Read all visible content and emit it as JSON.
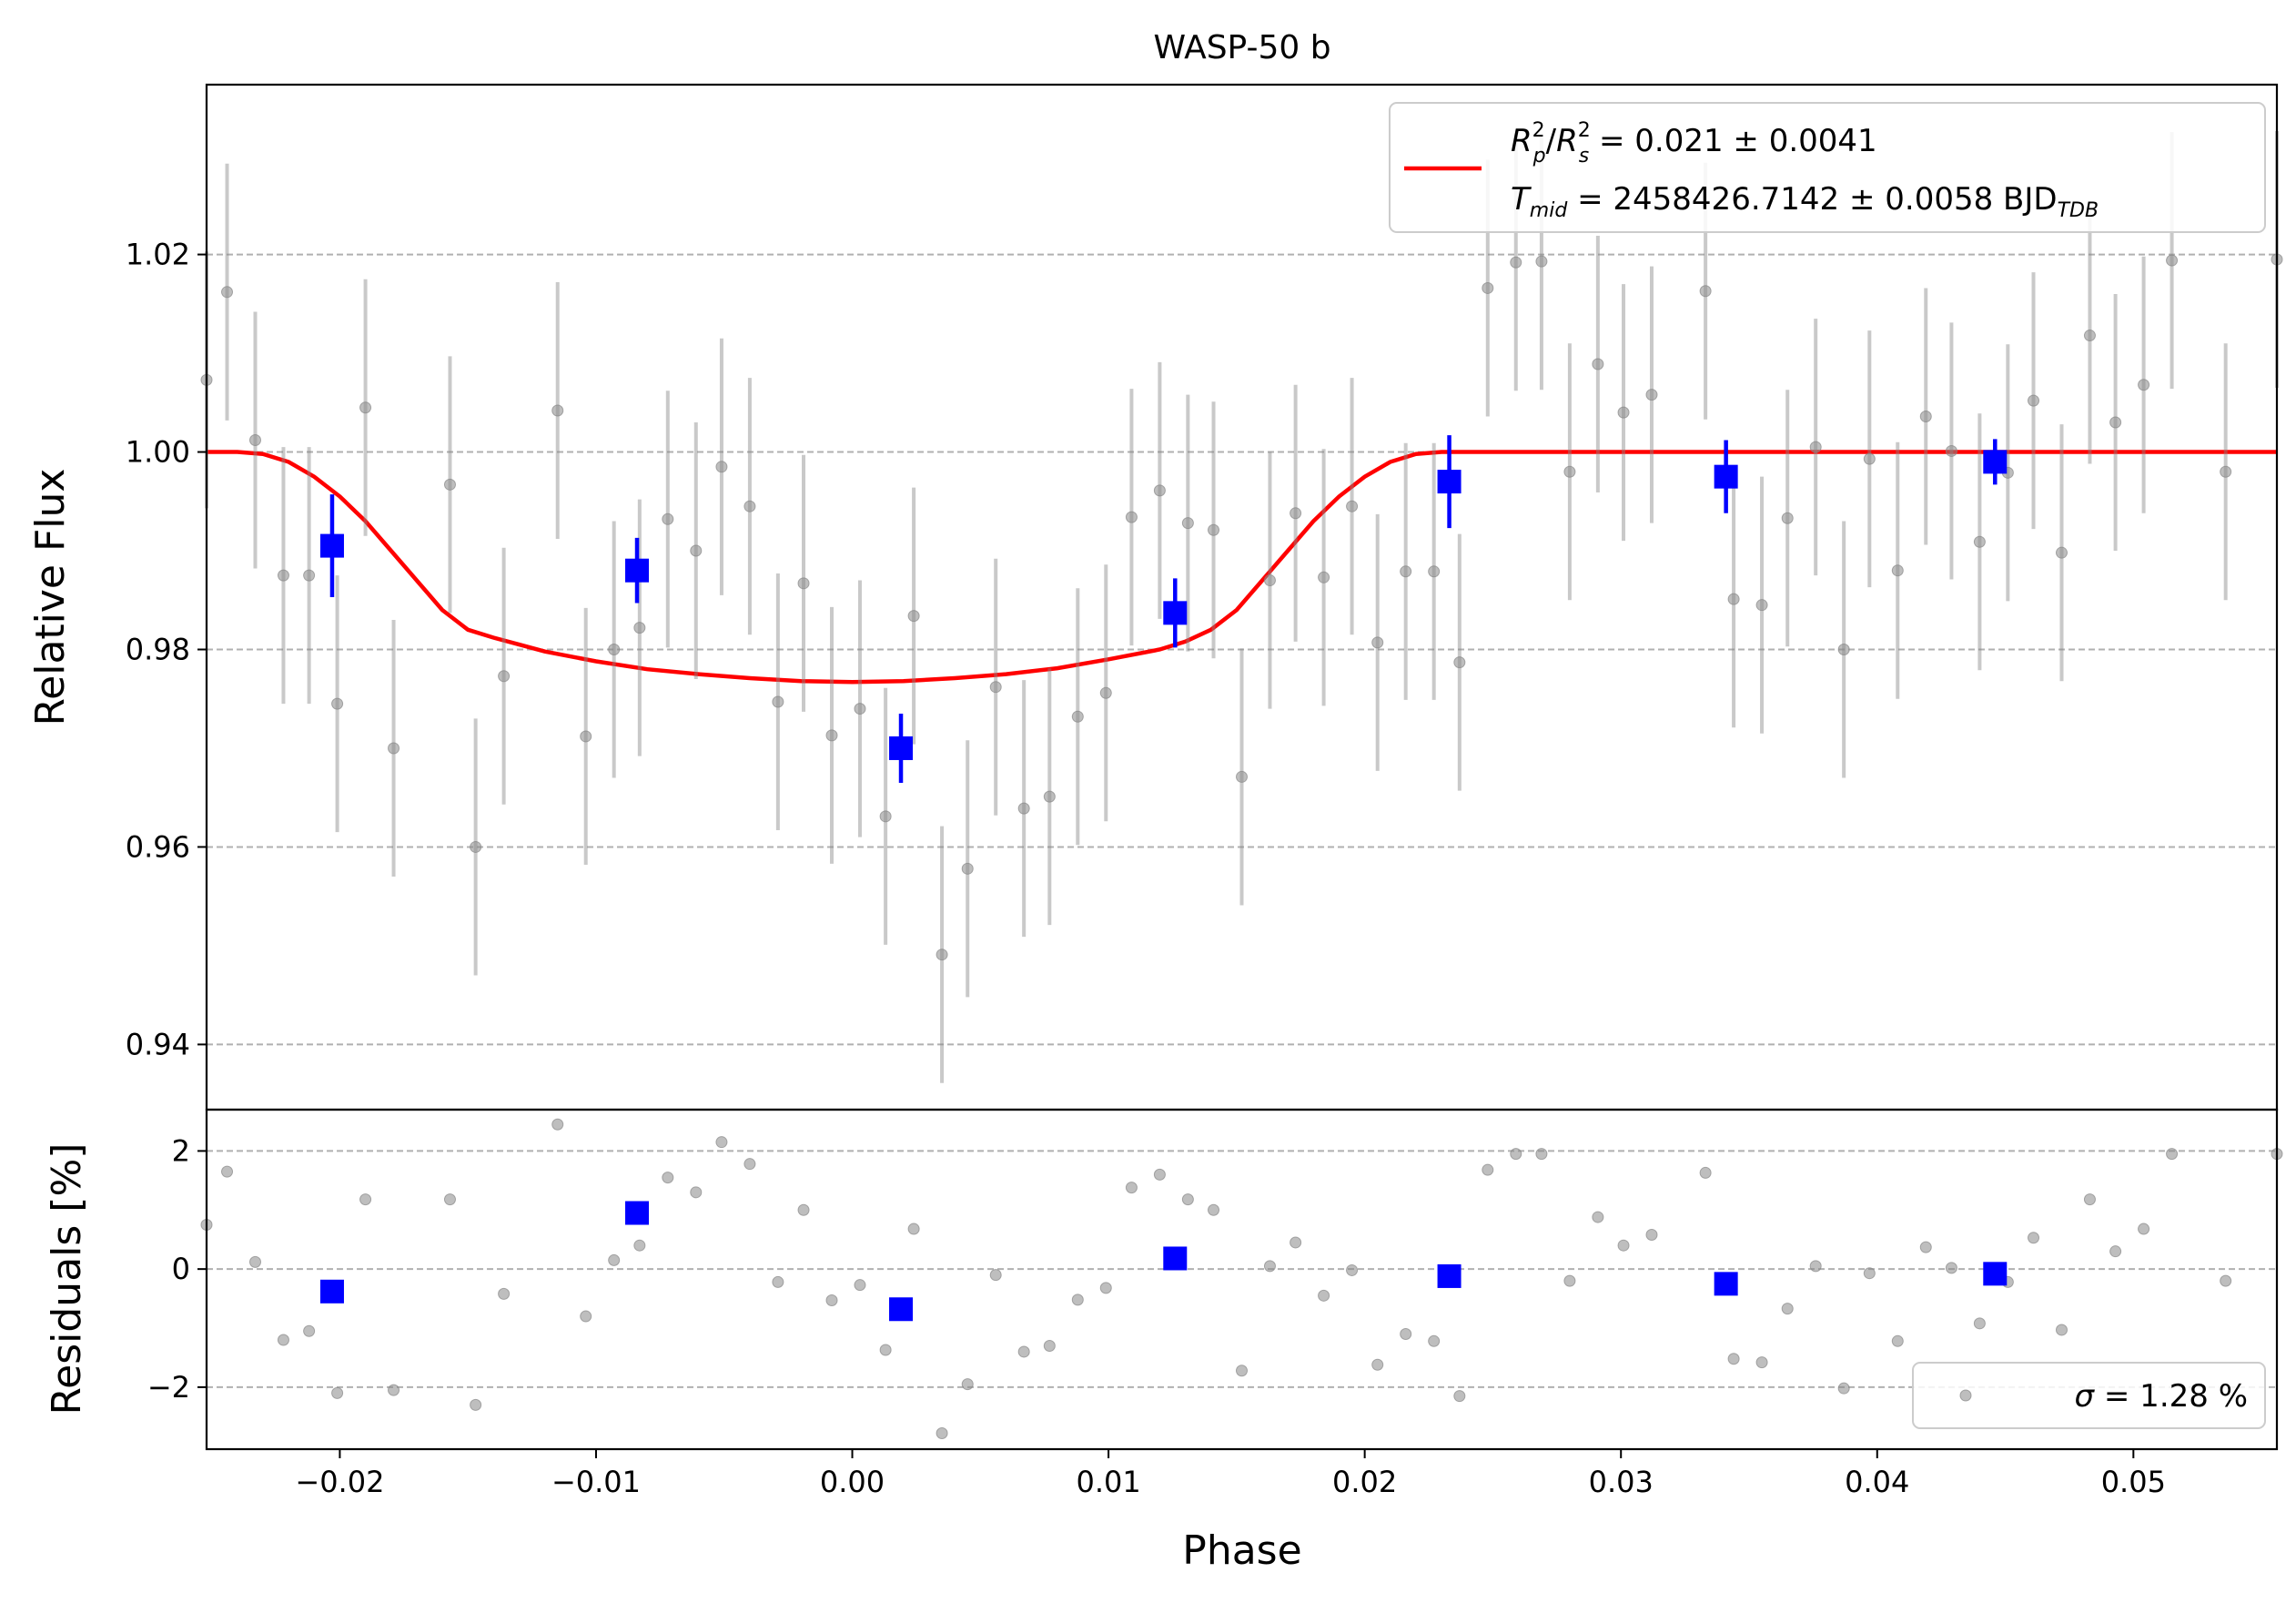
{
  "chart_data": [
    {
      "type": "scatter",
      "title": "WASP-50 b",
      "ylabel": "Relative Flux",
      "xlim": [
        -0.0252,
        0.0556
      ],
      "ylim": [
        0.9334,
        1.0372
      ],
      "xticks": [
        "−0.02",
        "−0.01",
        "0.00",
        "0.01",
        "0.02",
        "0.03",
        "0.04",
        "0.05"
      ],
      "yticks": [
        "0.94",
        "0.96",
        "0.98",
        "1.00",
        "1.02"
      ],
      "grid": "y-dashed",
      "legend": {
        "placement": "top-right",
        "line1": {
          "a": "R",
          "a_sub": "p",
          "a_sup": "2",
          "b": "R",
          "b_sub": "s",
          "b_sup": "2",
          "value": " = 0.021 ± 0.0041"
        },
        "line2": {
          "sym": "T",
          "sym_sub": "mid",
          "value": " = 2458426.7142 ± 0.0058 BJD",
          "unit_sub": "TDB"
        }
      },
      "series": [
        {
          "kind": "raw",
          "color": "#888888",
          "x": [
            -0.0254,
            -0.0244,
            -0.0233,
            -0.0222,
            -0.0212,
            -0.0201,
            -0.019,
            -0.0179,
            -0.0157,
            -0.0147,
            -0.0136,
            -0.0115,
            -0.0104,
            -0.0093,
            -0.0083,
            -0.0072,
            -0.0061,
            -0.0051,
            -0.004,
            -0.0029,
            -0.0019,
            -0.0008,
            0.0003,
            0.0013,
            0.0024,
            0.0035,
            0.0045,
            0.0056,
            0.0067,
            0.0077,
            0.0088,
            0.0099,
            0.0109,
            0.012,
            0.0131,
            0.0141,
            0.0152,
            0.0163,
            0.0173,
            0.0184,
            0.0195,
            0.0205,
            0.0216,
            0.0227,
            0.0237,
            0.0248,
            0.0259,
            0.0269,
            0.028,
            0.0291,
            0.0301,
            0.0312,
            0.0333,
            0.0344,
            0.0355,
            0.0365,
            0.0376,
            0.0387,
            0.0397,
            0.0408,
            0.0419,
            0.0429,
            0.044,
            0.0451,
            0.0461,
            0.0472,
            0.0483,
            0.0493,
            0.0504,
            0.0515,
            0.0536,
            0.0557
          ],
          "y": [
            1.0073,
            1.0162,
            1.0012,
            0.9875,
            0.9875,
            0.9745,
            1.0045,
            0.97,
            0.9967,
            0.96,
            0.9773,
            1.0042,
            0.9712,
            0.98,
            0.9822,
            0.9932,
            0.99,
            0.9985,
            0.9945,
            0.9747,
            0.9867,
            0.9713,
            0.974,
            0.9631,
            0.9834,
            0.9491,
            0.9578,
            0.9762,
            0.9639,
            0.9651,
            0.9732,
            0.9756,
            0.9934,
            0.9961,
            0.9928,
            0.9921,
            0.9671,
            0.987,
            0.9938,
            0.9873,
            0.9945,
            0.9807,
            0.9879,
            0.9879,
            0.9787,
            1.0166,
            1.0192,
            1.0193,
            0.998,
            1.0089,
            1.004,
            1.0058,
            1.0163,
            0.9851,
            0.9845,
            0.9933,
            1.0005,
            0.98,
            0.9993,
            0.988,
            1.0036,
            1.0001,
            0.9909,
            0.9979,
            1.0052,
            0.9898,
            1.0118,
            1.003,
            1.0068,
            1.0194,
            0.998,
            1.0195
          ],
          "err": [
            0.013,
            0.013,
            0.013,
            0.013,
            0.013,
            0.013,
            0.013,
            0.013,
            0.013,
            0.013,
            0.013,
            0.013,
            0.013,
            0.013,
            0.013,
            0.013,
            0.013,
            0.013,
            0.013,
            0.013,
            0.013,
            0.013,
            0.013,
            0.013,
            0.013,
            0.013,
            0.013,
            0.013,
            0.013,
            0.013,
            0.013,
            0.013,
            0.013,
            0.013,
            0.013,
            0.013,
            0.013,
            0.013,
            0.013,
            0.013,
            0.013,
            0.013,
            0.013,
            0.013,
            0.013,
            0.013,
            0.013,
            0.013,
            0.013,
            0.013,
            0.013,
            0.013,
            0.013,
            0.013,
            0.013,
            0.013,
            0.013,
            0.013,
            0.013,
            0.013,
            0.013,
            0.013,
            0.013,
            0.013,
            0.013,
            0.013,
            0.013,
            0.013,
            0.013,
            0.013,
            0.013,
            0.013
          ]
        },
        {
          "kind": "binned",
          "color": "#0000ff",
          "x": [
            -0.0203,
            -0.0084,
            0.0019,
            0.0126,
            0.0233,
            0.0341,
            0.0446
          ],
          "y": [
            0.9905,
            0.988,
            0.97,
            0.9837,
            0.997,
            0.9975,
            0.999
          ],
          "err": [
            0.0052,
            0.0033,
            0.0035,
            0.0035,
            0.0047,
            0.0037,
            0.0023
          ]
        },
        {
          "kind": "model",
          "color": "#ff0000",
          "x": [
            -0.0252,
            -0.024,
            -0.023,
            -0.022,
            -0.021,
            -0.02,
            -0.019,
            -0.018,
            -0.017,
            -0.016,
            -0.015,
            -0.014,
            -0.013,
            -0.012,
            -0.01,
            -0.008,
            -0.006,
            -0.004,
            -0.002,
            0.0,
            0.002,
            0.004,
            0.006,
            0.008,
            0.01,
            0.012,
            0.013,
            0.014,
            0.015,
            0.016,
            0.017,
            0.018,
            0.019,
            0.02,
            0.021,
            0.022,
            0.023,
            0.024,
            0.0556
          ],
          "y": [
            1.0,
            1.0,
            0.9998,
            0.999,
            0.9975,
            0.9955,
            0.993,
            0.99,
            0.987,
            0.984,
            0.982,
            0.9812,
            0.9805,
            0.9798,
            0.9788,
            0.978,
            0.9775,
            0.9771,
            0.9768,
            0.9767,
            0.9768,
            0.9771,
            0.9775,
            0.9781,
            0.979,
            0.98,
            0.9808,
            0.982,
            0.984,
            0.987,
            0.99,
            0.993,
            0.9955,
            0.9975,
            0.999,
            0.9998,
            1.0,
            1.0,
            1.0
          ]
        }
      ]
    },
    {
      "type": "scatter",
      "ylabel": "Residuals [%]",
      "xlabel": "Phase",
      "xlim": [
        -0.0252,
        0.0556
      ],
      "ylim": [
        -3.05,
        2.7
      ],
      "yticks": [
        "−2",
        "0",
        "2"
      ],
      "grid": "y-dashed",
      "legend": {
        "placement": "bottom-right",
        "sym": "σ",
        "value": " = 1.28 %"
      },
      "series": [
        {
          "kind": "raw",
          "color": "#888888",
          "x": [
            -0.0254,
            -0.0244,
            -0.0233,
            -0.0222,
            -0.0212,
            -0.0201,
            -0.019,
            -0.0179,
            -0.0157,
            -0.0147,
            -0.0136,
            -0.0115,
            -0.0104,
            -0.0093,
            -0.0083,
            -0.0072,
            -0.0061,
            -0.0051,
            -0.004,
            -0.0029,
            -0.0019,
            -0.0008,
            0.0003,
            0.0013,
            0.0024,
            0.0035,
            0.0045,
            0.0056,
            0.0067,
            0.0077,
            0.0088,
            0.0099,
            0.0109,
            0.012,
            0.0131,
            0.0141,
            0.0152,
            0.0163,
            0.0173,
            0.0184,
            0.0195,
            0.0205,
            0.0216,
            0.0227,
            0.0237,
            0.0248,
            0.0259,
            0.0269,
            0.028,
            0.0291,
            0.0301,
            0.0312,
            0.0333,
            0.0344,
            0.0355,
            0.0365,
            0.0376,
            0.0387,
            0.0397,
            0.0408,
            0.0419,
            0.0429,
            0.044,
            0.0451,
            0.0461,
            0.0472,
            0.0483,
            0.0493,
            0.0504,
            0.0515,
            0.0536,
            0.0557
          ],
          "y": [
            0.75,
            1.65,
            0.12,
            -1.2,
            -1.05,
            -2.1,
            1.18,
            -2.05,
            1.18,
            -2.3,
            -0.42,
            2.45,
            -0.8,
            0.15,
            0.4,
            1.55,
            1.3,
            2.15,
            1.78,
            -0.22,
            1.0,
            -0.53,
            -0.27,
            -1.37,
            0.68,
            -2.78,
            -1.95,
            -0.1,
            -1.4,
            -1.3,
            -0.52,
            -0.32,
            1.38,
            1.6,
            1.18,
            1.0,
            -1.72,
            0.05,
            0.45,
            -0.45,
            -0.02,
            -1.62,
            -1.1,
            -1.22,
            -2.15,
            1.68,
            1.95,
            1.95,
            -0.2,
            0.88,
            0.4,
            0.58,
            1.63,
            -1.52,
            -1.58,
            -0.67,
            0.05,
            -2.02,
            -0.07,
            -1.22,
            0.37,
            0.02,
            -0.92,
            -0.22,
            0.53,
            -1.03,
            1.18,
            0.3,
            0.68,
            1.95,
            -0.2,
            1.95
          ]
        },
        {
          "kind": "binned",
          "color": "#0000ff",
          "x": [
            -0.0203,
            -0.0084,
            0.0019,
            0.0126,
            0.0233,
            0.0341,
            0.0446
          ],
          "y": [
            -0.38,
            0.95,
            -0.68,
            0.18,
            -0.12,
            -0.25,
            -0.08
          ]
        }
      ]
    }
  ]
}
